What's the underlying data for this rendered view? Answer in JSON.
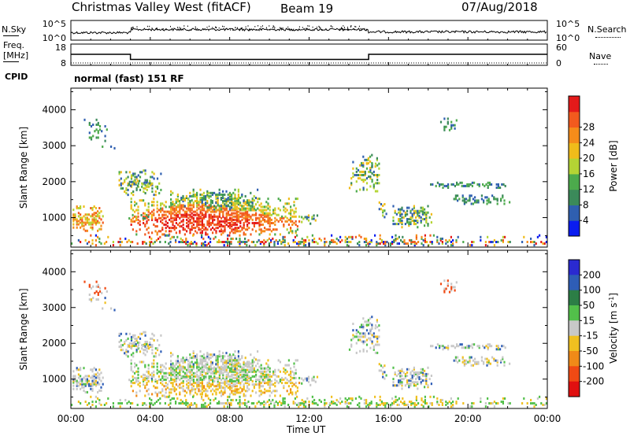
{
  "header": {
    "station": "Christmas Valley West (fitACF)",
    "beam": "Beam 19",
    "date": "07/Aug/2018"
  },
  "side_labels": {
    "nsky": "N.Sky",
    "freq_line1": "Freq.",
    "freq_line2": "[MHz]",
    "cpid": "CPID",
    "nsearch": "N.Search",
    "nave": "Nave"
  },
  "mode_text": "normal (fast) 151 RF",
  "colors": {
    "power": [
      "#0a1cf0",
      "#2f5fb0",
      "#3b8a5a",
      "#4caa4c",
      "#b4d434",
      "#f0bc1a",
      "#f58c1a",
      "#f25a1e",
      "#e41a1a"
    ],
    "velocity": [
      "#2a2ad0",
      "#2e5db6",
      "#2c7e46",
      "#52c04a",
      "#c8c8c8",
      "#f0c020",
      "#f08a18",
      "#f04a14",
      "#e01010"
    ]
  },
  "chart_data": [
    {
      "type": "line",
      "name": "noise-panel",
      "y_left_ticks": [
        "10^5",
        "10^0"
      ],
      "y_right_ticks": [
        "10^5",
        "10^0"
      ]
    },
    {
      "type": "line",
      "name": "freq-nave-panel",
      "y_left_ticks": [
        18,
        8
      ],
      "y_right_ticks": [
        60,
        0
      ],
      "freq_steps": [
        {
          "from_hour": 0,
          "to_hour": 3,
          "value": 13.2
        },
        {
          "from_hour": 3,
          "to_hour": 15,
          "value": 10.8
        },
        {
          "from_hour": 15,
          "to_hour": 24,
          "value": 13.2
        }
      ],
      "nave_level": 10.6
    },
    {
      "type": "heatmap",
      "name": "power",
      "ylabel": "Slant Range [km]",
      "yticks": [
        1000,
        2000,
        3000,
        4000
      ],
      "ylim": [
        180,
        4600
      ],
      "colorbar_label": "Power [dB]",
      "colorbar_ticks": [
        4,
        8,
        12,
        16,
        20,
        24,
        28
      ],
      "colorbar_range": [
        0,
        32
      ]
    },
    {
      "type": "heatmap",
      "name": "velocity",
      "ylabel": "Slant Range [km]",
      "yticks": [
        1000,
        2000,
        3000,
        4000
      ],
      "ylim": [
        180,
        4600
      ],
      "colorbar_label": "Velocity [m s",
      "colorbar_label_sup": "-1",
      "colorbar_ticks": [
        200,
        100,
        50,
        15,
        -15,
        -50,
        -100,
        -200
      ]
    }
  ],
  "x_axis": {
    "ticks": [
      "00:00",
      "04:00",
      "08:00",
      "12:00",
      "16:00",
      "20:00",
      "00:00"
    ],
    "xlim_hours": [
      0,
      24
    ],
    "label": "Time UT"
  }
}
